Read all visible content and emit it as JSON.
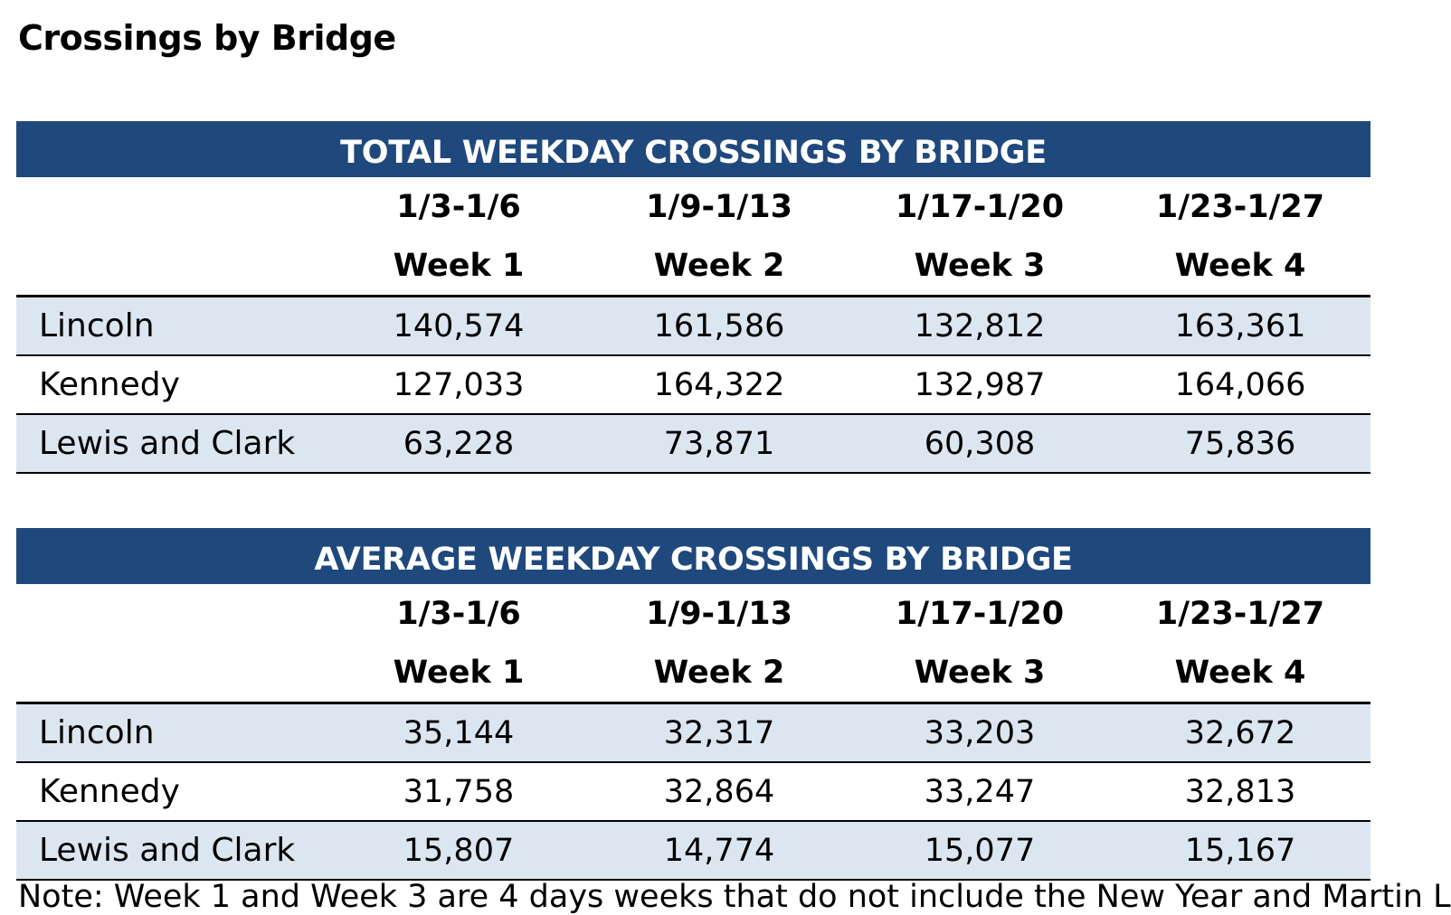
{
  "page": {
    "title": "Crossings by Bridge",
    "note": "Note: Week 1 and Week 3 are 4 days weeks that do not include the New Year and Martin L"
  },
  "chart_data": [
    {
      "type": "table",
      "title": "TOTAL WEEKDAY CROSSINGS BY BRIDGE",
      "date_ranges": [
        "1/3-1/6",
        "1/9-1/13",
        "1/17-1/20",
        "1/23-1/27"
      ],
      "weeks": [
        "Week 1",
        "Week 2",
        "Week 3",
        "Week 4"
      ],
      "rows": [
        {
          "bridge": "Lincoln",
          "values": [
            "140,574",
            "161,586",
            "132,812",
            "163,361"
          ]
        },
        {
          "bridge": "Kennedy",
          "values": [
            "127,033",
            "164,322",
            "132,987",
            "164,066"
          ]
        },
        {
          "bridge": "Lewis and Clark",
          "values": [
            "63,228",
            "73,871",
            "60,308",
            "75,836"
          ]
        }
      ]
    },
    {
      "type": "table",
      "title": "AVERAGE WEEKDAY CROSSINGS BY BRIDGE",
      "date_ranges": [
        "1/3-1/6",
        "1/9-1/13",
        "1/17-1/20",
        "1/23-1/27"
      ],
      "weeks": [
        "Week 1",
        "Week 2",
        "Week 3",
        "Week 4"
      ],
      "rows": [
        {
          "bridge": "Lincoln",
          "values": [
            "35,144",
            "32,317",
            "33,203",
            "32,672"
          ]
        },
        {
          "bridge": "Kennedy",
          "values": [
            "31,758",
            "32,864",
            "33,247",
            "32,813"
          ]
        },
        {
          "bridge": "Lewis and Clark",
          "values": [
            "15,807",
            "14,774",
            "15,077",
            "15,167"
          ]
        }
      ]
    }
  ],
  "colors": {
    "banner": "#1f497d",
    "banner_text": "#ffffff",
    "row_shade": "#dce6f1"
  }
}
